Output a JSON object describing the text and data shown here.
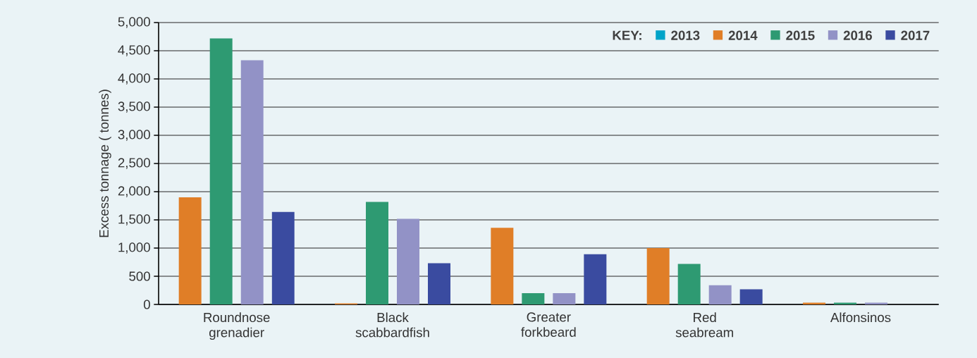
{
  "chart_data": {
    "type": "bar",
    "ylabel": "Excess tonnage ( tonnes)",
    "legend_title": "KEY:",
    "categories": [
      "Roundnose grenadier",
      "Black scabbardfish",
      "Greater forkbeard",
      "Red seabream",
      "Alfonsinos"
    ],
    "series": [
      {
        "name": "2013",
        "color": "#00a3c8",
        "values": [
          null,
          null,
          null,
          null,
          null
        ]
      },
      {
        "name": "2014",
        "color": "#e07e27",
        "values": [
          1900,
          20,
          1360,
          1000,
          30
        ]
      },
      {
        "name": "2015",
        "color": "#2e9a72",
        "values": [
          4720,
          1820,
          200,
          720,
          30
        ]
      },
      {
        "name": "2016",
        "color": "#9292c6",
        "values": [
          4330,
          1520,
          200,
          340,
          30
        ]
      },
      {
        "name": "2017",
        "color": "#3a4ba0",
        "values": [
          1640,
          730,
          890,
          270,
          null
        ]
      }
    ],
    "ylim": [
      0,
      5000
    ],
    "yticks": [
      {
        "value": 0,
        "label": "0"
      },
      {
        "value": 500,
        "label": "500"
      },
      {
        "value": 1000,
        "label": "1,000"
      },
      {
        "value": 1500,
        "label": "1,500"
      },
      {
        "value": 2000,
        "label": "2,000"
      },
      {
        "value": 2500,
        "label": "2,500"
      },
      {
        "value": 3000,
        "label": "3,000"
      },
      {
        "value": 3500,
        "label": "3,500"
      },
      {
        "value": 4000,
        "label": "4,000"
      },
      {
        "value": 4500,
        "label": "4,500"
      },
      {
        "value": 5000,
        "label": "5,000"
      }
    ],
    "grid": "y",
    "legend": "top right"
  }
}
